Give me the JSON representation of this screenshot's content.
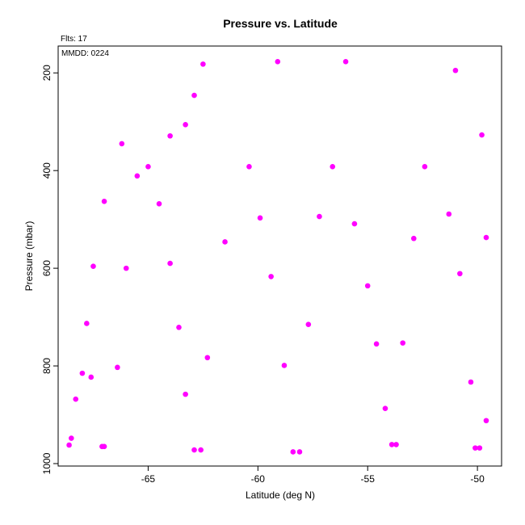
{
  "chart_data": {
    "type": "scatter",
    "title": "Pressure vs. Latitude",
    "annotations": {
      "flts": "Flts: 17",
      "mmdd": "MMDD: 0224"
    },
    "xlabel": "Latitude (deg N)",
    "ylabel": "Pressure (mbar)",
    "xlim": [
      -69.1,
      -48.9
    ],
    "ylim": [
      1005,
      145
    ],
    "y_inverted": true,
    "xticks": [
      -65,
      -60,
      -55,
      -50
    ],
    "xtick_labels": [
      "-65",
      "-60",
      "-55",
      "-50"
    ],
    "yticks": [
      200,
      400,
      600,
      800,
      1000
    ],
    "ytick_labels": [
      "200",
      "400",
      "600",
      "800",
      "1000"
    ],
    "grid": false,
    "marker_color": "#ff00ff",
    "points": [
      [
        -68.6,
        962
      ],
      [
        -68.5,
        948
      ],
      [
        -68.3,
        868
      ],
      [
        -68.0,
        815
      ],
      [
        -67.8,
        713
      ],
      [
        -67.6,
        823
      ],
      [
        -67.5,
        596
      ],
      [
        -67.1,
        965
      ],
      [
        -67.0,
        965
      ],
      [
        -67.0,
        463
      ],
      [
        -66.4,
        803
      ],
      [
        -66.2,
        345
      ],
      [
        -66.0,
        600
      ],
      [
        -65.5,
        411
      ],
      [
        -65.0,
        392
      ],
      [
        -64.5,
        468
      ],
      [
        -64.0,
        329
      ],
      [
        -64.0,
        590
      ],
      [
        -63.6,
        721
      ],
      [
        -63.3,
        306
      ],
      [
        -63.3,
        858
      ],
      [
        -62.9,
        246
      ],
      [
        -62.9,
        972
      ],
      [
        -62.6,
        972
      ],
      [
        -62.5,
        182
      ],
      [
        -62.3,
        783
      ],
      [
        -61.5,
        546
      ],
      [
        -60.4,
        392
      ],
      [
        -59.9,
        497
      ],
      [
        -59.4,
        617
      ],
      [
        -59.1,
        177
      ],
      [
        -58.8,
        799
      ],
      [
        -58.4,
        976
      ],
      [
        -58.1,
        976
      ],
      [
        -57.7,
        715
      ],
      [
        -57.2,
        494
      ],
      [
        -56.6,
        392
      ],
      [
        -56.0,
        177
      ],
      [
        -55.6,
        509
      ],
      [
        -55.0,
        636
      ],
      [
        -54.6,
        755
      ],
      [
        -54.2,
        887
      ],
      [
        -53.9,
        961
      ],
      [
        -53.7,
        961
      ],
      [
        -53.4,
        753
      ],
      [
        -52.9,
        539
      ],
      [
        -52.4,
        392
      ],
      [
        -51.3,
        489
      ],
      [
        -51.0,
        195
      ],
      [
        -50.8,
        611
      ],
      [
        -50.3,
        833
      ],
      [
        -50.1,
        968
      ],
      [
        -49.9,
        968
      ],
      [
        -49.8,
        327
      ],
      [
        -49.6,
        912
      ],
      [
        -49.6,
        537
      ]
    ]
  }
}
